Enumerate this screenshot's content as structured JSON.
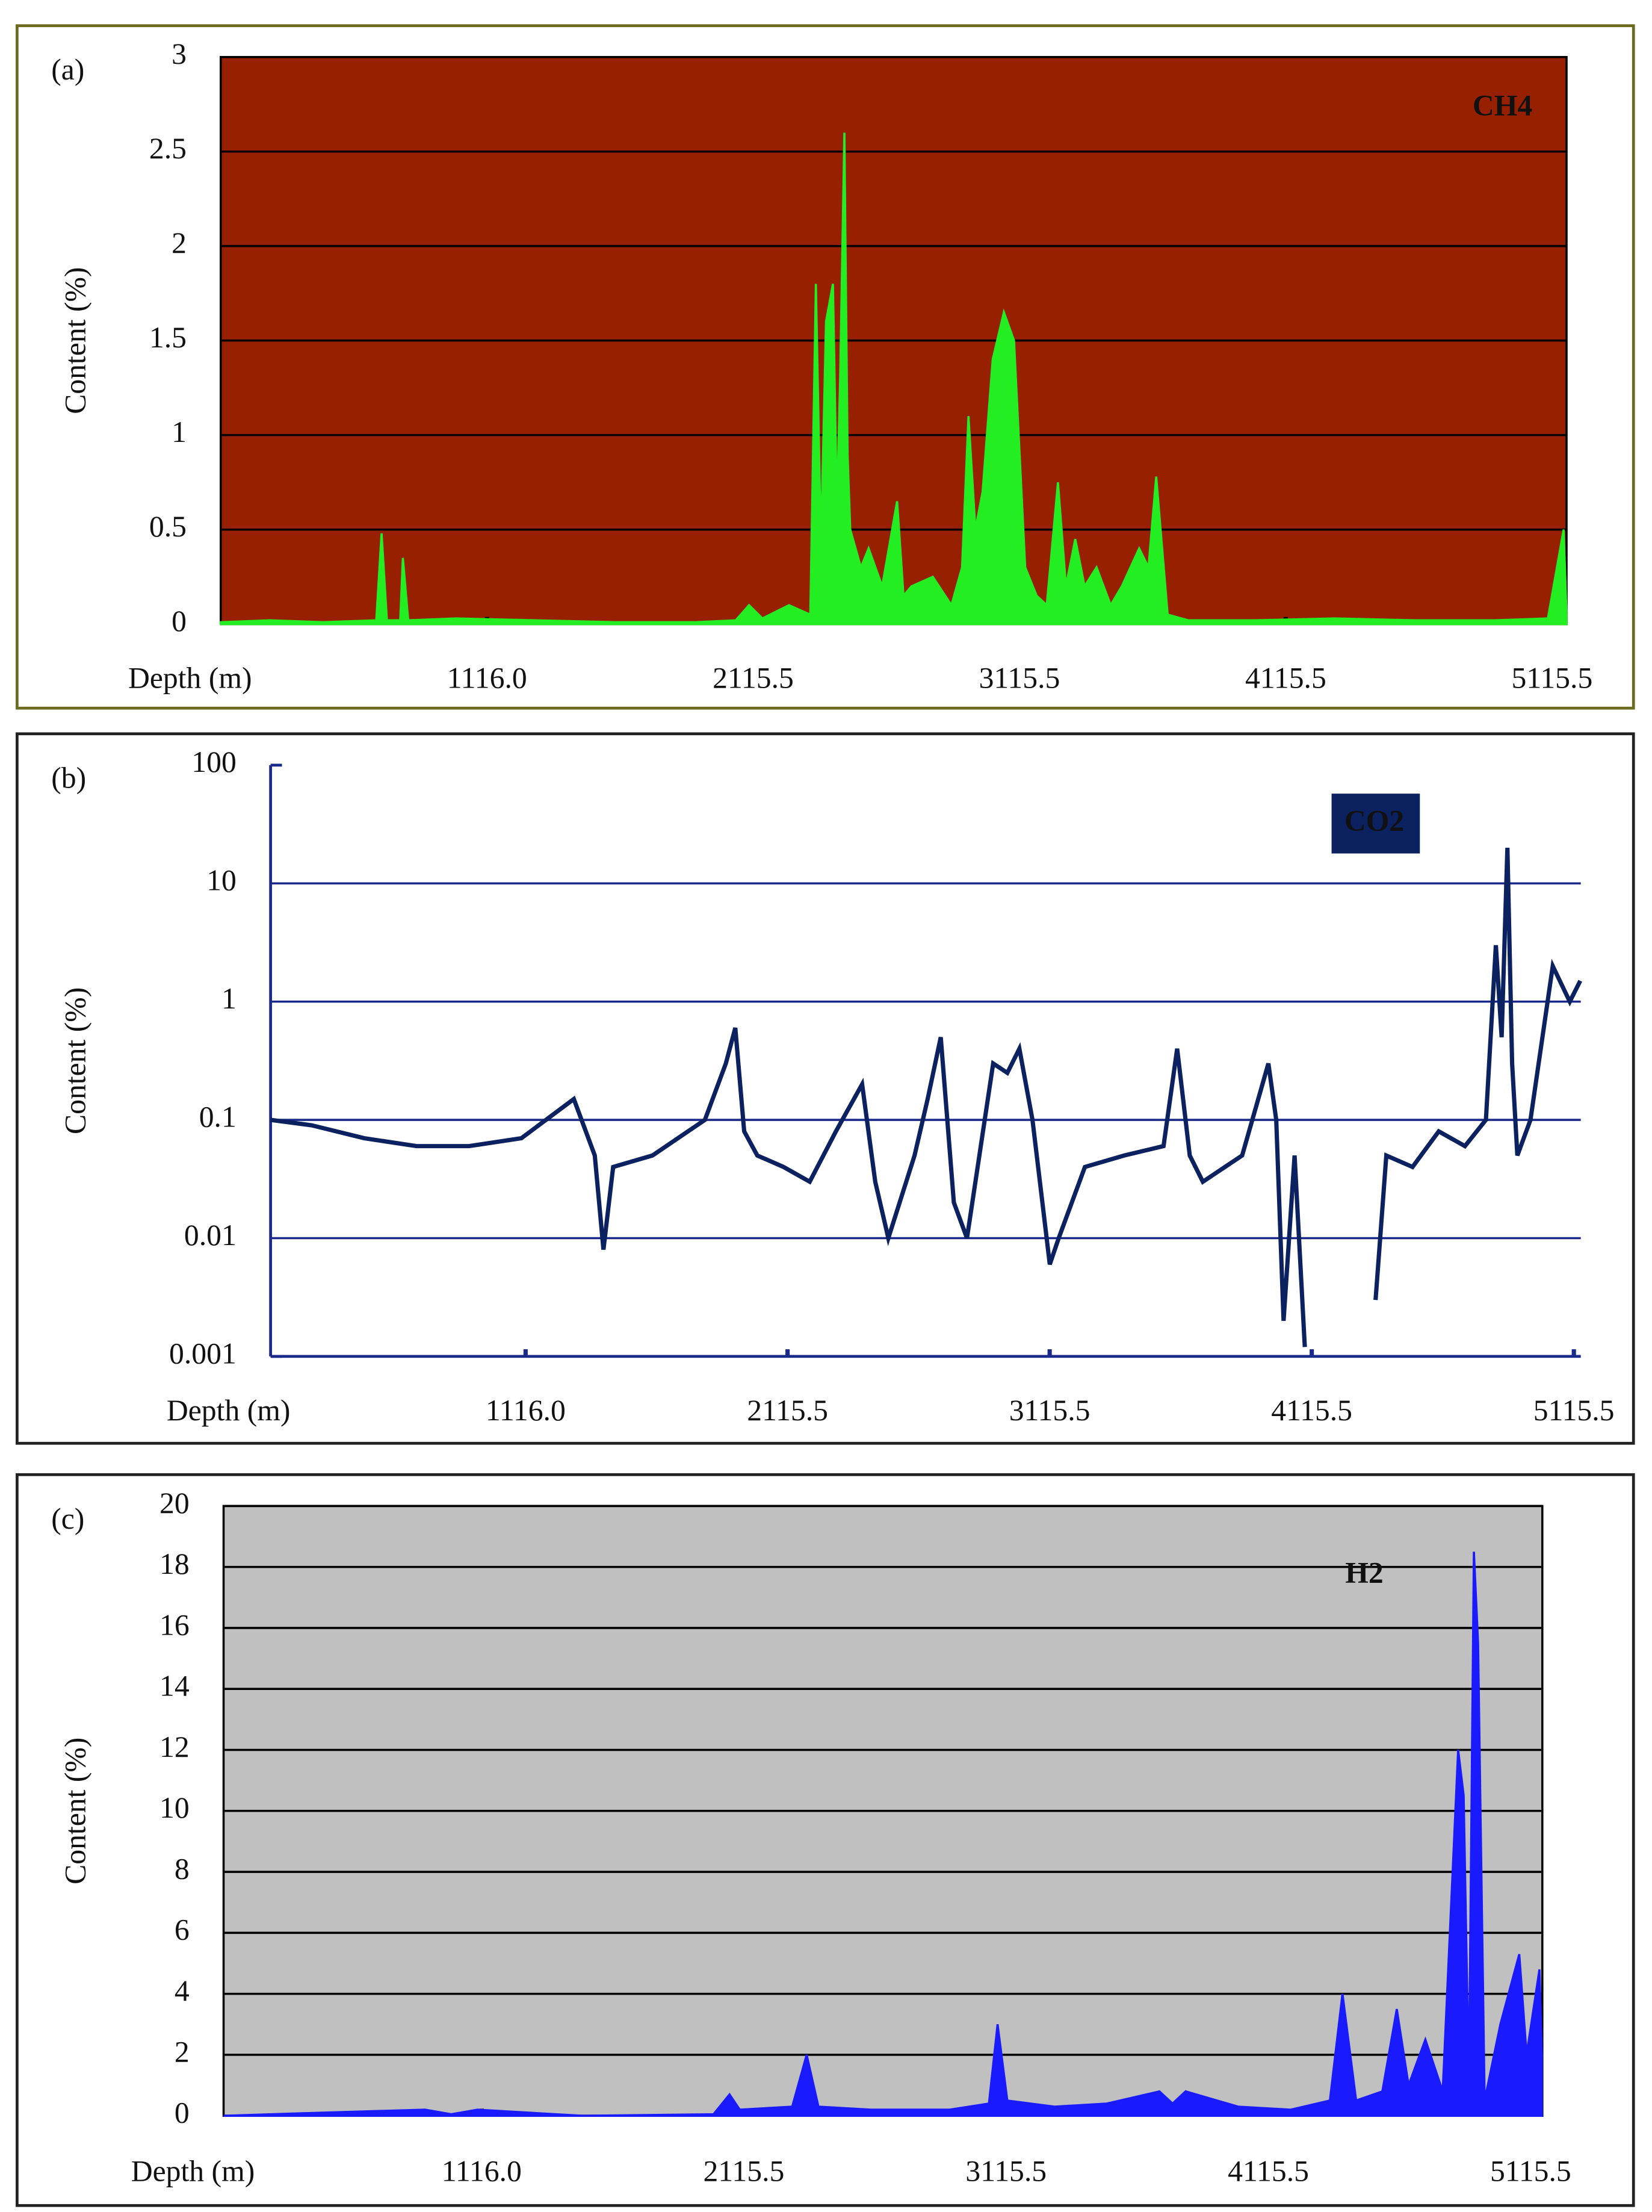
{
  "chart_data": [
    {
      "type": "area",
      "panel_label": "(a)",
      "x_label": "Depth (m)",
      "y_label": "Content (%)",
      "xlim": [
        116,
        5170
      ],
      "xticks": [
        {
          "value": 1116,
          "label": "1116.0"
        },
        {
          "value": 2115.5,
          "label": "2115.5"
        },
        {
          "value": 3115.5,
          "label": "3115.5"
        },
        {
          "value": 4115.5,
          "label": "4115.5"
        },
        {
          "value": 5115.5,
          "label": "5115.5"
        }
      ],
      "ylim": [
        0,
        3
      ],
      "yticks": [
        0,
        0.5,
        1,
        1.5,
        2,
        2.5,
        3
      ],
      "grid": true,
      "background": "#962000",
      "legend": "upper right",
      "x": [
        116,
        300,
        500,
        700,
        720,
        740,
        790,
        800,
        820,
        1000,
        1300,
        1600,
        1900,
        2050,
        2100,
        2150,
        2250,
        2330,
        2351,
        2370,
        2389,
        2415,
        2430,
        2442,
        2458,
        2470,
        2480,
        2520,
        2549,
        2600,
        2656,
        2680,
        2710,
        2790,
        2860,
        2900,
        2924,
        2950,
        2977,
        3015,
        3057,
        3095,
        3137,
        3180,
        3218,
        3260,
        3290,
        3325,
        3360,
        3405,
        3458,
        3500,
        3565,
        3600,
        3629,
        3672,
        3750,
        4000,
        4300,
        4600,
        4900,
        5100,
        5159,
        5170
      ],
      "series": [
        {
          "name": "CH4",
          "color": "#22ee22",
          "values": [
            0.01,
            0.02,
            0.01,
            0.02,
            0.48,
            0.02,
            0.02,
            0.35,
            0.02,
            0.03,
            0.02,
            0.01,
            0.01,
            0.02,
            0.1,
            0.03,
            0.1,
            0.05,
            1.8,
            0.4,
            1.6,
            1.8,
            0.6,
            1.3,
            2.6,
            0.9,
            0.5,
            0.3,
            0.4,
            0.2,
            0.65,
            0.15,
            0.2,
            0.25,
            0.1,
            0.3,
            1.1,
            0.5,
            0.7,
            1.4,
            1.65,
            1.5,
            0.3,
            0.15,
            0.1,
            0.75,
            0.2,
            0.45,
            0.2,
            0.3,
            0.1,
            0.2,
            0.4,
            0.3,
            0.78,
            0.05,
            0.02,
            0.02,
            0.03,
            0.02,
            0.02,
            0.03,
            0.5,
            0.05
          ]
        }
      ]
    },
    {
      "type": "line",
      "panel_label": "(b)",
      "x_label": "Depth (m)",
      "y_label": "Content (%)",
      "log_scale": true,
      "xlim": [
        143,
        5142
      ],
      "xticks": [
        {
          "value": 1116,
          "label": "1116.0"
        },
        {
          "value": 2115.5,
          "label": "2115.5"
        },
        {
          "value": 3115.5,
          "label": "3115.5"
        },
        {
          "value": 4115.5,
          "label": "4115.5"
        },
        {
          "value": 5115.5,
          "label": "5115.5"
        }
      ],
      "ylim": [
        0.001,
        100
      ],
      "yticks": [
        0.001,
        0.01,
        0.1,
        1,
        10,
        100
      ],
      "grid": true,
      "background": "#ffffff",
      "legend": "upper right",
      "x": [
        143,
        300,
        500,
        700,
        900,
        1100,
        1300,
        1380,
        1413,
        1450,
        1600,
        1800,
        1880,
        1916,
        1950,
        2000,
        2100,
        2200,
        2300,
        2400,
        2450,
        2500,
        2600,
        2650,
        2700,
        2750,
        2800,
        2900,
        2954,
        3000,
        3050,
        3116,
        3150,
        3250,
        3400,
        3550,
        3602,
        3650,
        3700,
        3850,
        3950,
        3980,
        4008,
        4050,
        4089,
        4150,
        4250,
        4359,
        4400,
        4500,
        4600,
        4700,
        4780,
        4818,
        4840,
        4862,
        4880,
        4900,
        4950,
        5035,
        5100,
        5140
      ],
      "series": [
        {
          "name": "CO2",
          "color": "#0b2160",
          "values": [
            0.1,
            0.09,
            0.07,
            0.06,
            0.06,
            0.07,
            0.15,
            0.05,
            0.008,
            0.04,
            0.05,
            0.1,
            0.3,
            0.6,
            0.08,
            0.05,
            0.04,
            0.03,
            0.08,
            0.2,
            0.03,
            0.01,
            0.05,
            0.15,
            0.5,
            0.02,
            0.01,
            0.3,
            0.25,
            0.4,
            0.1,
            0.006,
            0.01,
            0.04,
            0.05,
            0.06,
            0.4,
            0.05,
            0.03,
            0.05,
            0.3,
            0.1,
            0.002,
            0.05,
            0.0012,
            null,
            null,
            0.003,
            0.05,
            0.04,
            0.08,
            0.06,
            0.1,
            3,
            0.5,
            20,
            0.3,
            0.05,
            0.1,
            2,
            1,
            1.5
          ]
        }
      ]
    },
    {
      "type": "area",
      "panel_label": "(c)",
      "x_label": "Depth (m)",
      "y_label": "Content (%)",
      "xlim": [
        132,
        5160
      ],
      "xticks": [
        {
          "value": 1116,
          "label": "1116.0"
        },
        {
          "value": 2115.5,
          "label": "2115.5"
        },
        {
          "value": 3115.5,
          "label": "3115.5"
        },
        {
          "value": 4115.5,
          "label": "4115.5"
        },
        {
          "value": 5115.5,
          "label": "5115.5"
        }
      ],
      "ylim": [
        0,
        20
      ],
      "yticks": [
        0,
        2,
        4,
        6,
        8,
        10,
        12,
        14,
        16,
        18,
        20
      ],
      "grid": true,
      "background": "#c0c0c0",
      "legend": "upper right",
      "x": [
        132,
        500,
        900,
        1000,
        1100,
        1500,
        2000,
        2061,
        2100,
        2300,
        2355,
        2400,
        2600,
        2900,
        3050,
        3083,
        3120,
        3300,
        3500,
        3700,
        3750,
        3800,
        4000,
        4200,
        4350,
        4398,
        4450,
        4550,
        4605,
        4650,
        4714,
        4780,
        4839,
        4860,
        4880,
        4899,
        4915,
        4940,
        5000,
        5072,
        5100,
        5149,
        5158
      ],
      "series": [
        {
          "name": "H2",
          "color": "#1a1aff",
          "values": [
            0,
            0.1,
            0.2,
            0.05,
            0.2,
            0,
            0.05,
            0.7,
            0.2,
            0.3,
            2,
            0.3,
            0.2,
            0.2,
            0.4,
            3,
            0.5,
            0.3,
            0.4,
            0.8,
            0.4,
            0.8,
            0.3,
            0.2,
            0.5,
            4,
            0.5,
            0.8,
            3.5,
            1,
            2.5,
            0.8,
            12,
            10.5,
            1,
            18.5,
            15.5,
            0.5,
            3,
            5.3,
            2,
            4.8,
            2
          ]
        }
      ]
    }
  ]
}
